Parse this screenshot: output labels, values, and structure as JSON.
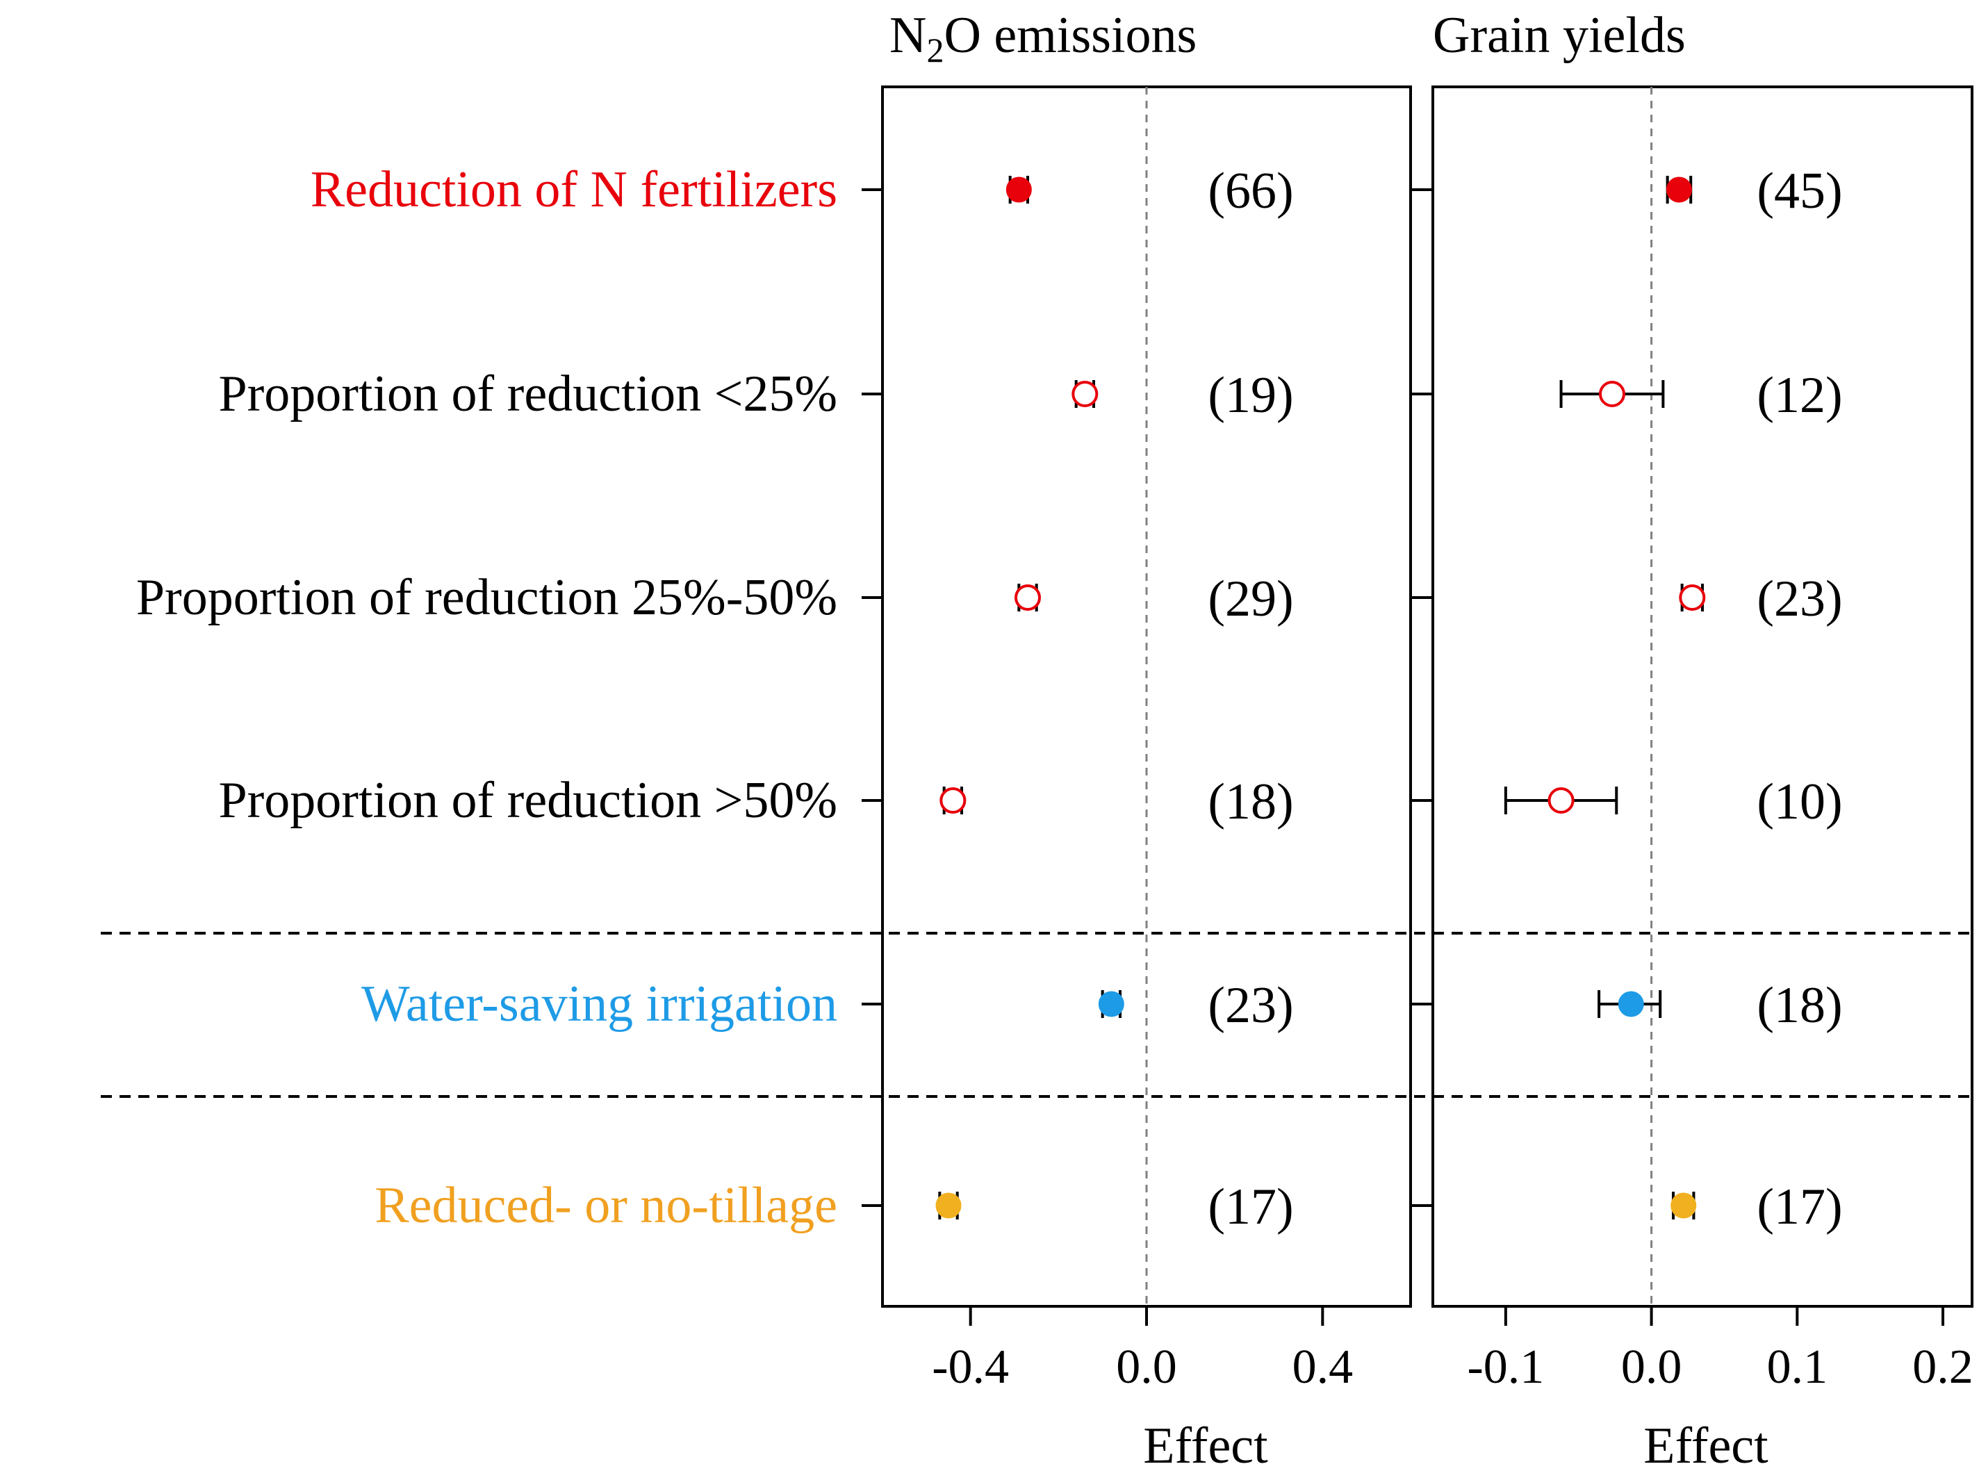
{
  "chart_data": [
    {
      "type": "forest",
      "panel": "left",
      "title_main": "N",
      "title_sub": "2",
      "title_rest": "O emissions",
      "xlabel": "Effect",
      "xlim": [
        -0.6,
        0.6
      ],
      "xticks": [
        "-0.4",
        "0.0",
        "0.4"
      ],
      "xtick_values": [
        -0.4,
        0.0,
        0.4
      ],
      "points": [
        {
          "category": "Reduction of N fertilizers",
          "value": -0.29,
          "ci": [
            -0.31,
            -0.27
          ],
          "n": "(66)",
          "style": "filled",
          "color": "#e8000b"
        },
        {
          "category": "Proportion of reduction <25%",
          "value": -0.14,
          "ci": [
            -0.16,
            -0.12
          ],
          "n": "(19)",
          "style": "open",
          "color": "#e8000b"
        },
        {
          "category": "Proportion of reduction 25%-50%",
          "value": -0.27,
          "ci": [
            -0.29,
            -0.25
          ],
          "n": "(29)",
          "style": "open",
          "color": "#e8000b"
        },
        {
          "category": "Proportion of reduction >50%",
          "value": -0.44,
          "ci": [
            -0.46,
            -0.42
          ],
          "n": "(18)",
          "style": "open",
          "color": "#e8000b"
        },
        {
          "category": "Water-saving irrigation",
          "value": -0.08,
          "ci": [
            -0.1,
            -0.06
          ],
          "n": "(23)",
          "style": "filled",
          "color": "#1e9be6"
        },
        {
          "category": "Reduced- or no-tillage",
          "value": -0.45,
          "ci": [
            -0.47,
            -0.43
          ],
          "n": "(17)",
          "style": "filled",
          "color": "#f0b020"
        }
      ]
    },
    {
      "type": "forest",
      "panel": "right",
      "title": "Grain yields",
      "xlabel": "Effect",
      "xlim": [
        -0.15,
        0.22
      ],
      "xticks": [
        "-0.1",
        "0.0",
        "0.1",
        "0.2"
      ],
      "xtick_values": [
        -0.1,
        0.0,
        0.1,
        0.2
      ],
      "points": [
        {
          "category": "Reduction of N fertilizers",
          "value": 0.019,
          "ci": [
            0.011,
            0.027
          ],
          "n": "(45)",
          "style": "filled",
          "color": "#e8000b"
        },
        {
          "category": "Proportion of reduction <25%",
          "value": -0.027,
          "ci": [
            -0.062,
            0.008
          ],
          "n": "(12)",
          "style": "open",
          "color": "#e8000b"
        },
        {
          "category": "Proportion of reduction 25%-50%",
          "value": 0.028,
          "ci": [
            0.021,
            0.035
          ],
          "n": "(23)",
          "style": "open",
          "color": "#e8000b"
        },
        {
          "category": "Proportion of reduction >50%",
          "value": -0.062,
          "ci": [
            -0.1,
            -0.024
          ],
          "n": "(10)",
          "style": "open",
          "color": "#e8000b"
        },
        {
          "category": "Water-saving irrigation",
          "value": -0.014,
          "ci": [
            -0.036,
            0.006
          ],
          "n": "(18)",
          "style": "filled",
          "color": "#1e9be6"
        },
        {
          "category": "Reduced- or no-tillage",
          "value": 0.022,
          "ci": [
            0.015,
            0.029
          ],
          "n": "(17)",
          "style": "filled",
          "color": "#f0b020"
        }
      ]
    }
  ],
  "rows": [
    {
      "label": "Reduction of N fertilizers",
      "color": "#e8000b"
    },
    {
      "label": "Proportion of reduction <25%",
      "color": "#000000"
    },
    {
      "label": "Proportion of reduction 25%-50%",
      "color": "#000000"
    },
    {
      "label": "Proportion of reduction >50%",
      "color": "#000000"
    },
    {
      "label": "Water-saving irrigation",
      "color": "#1e9be6"
    },
    {
      "label": "Reduced- or no-tillage",
      "color": "#f0a020"
    }
  ],
  "colors": {
    "axis": "#000000",
    "zero_line": "#808080",
    "separator": "#000000"
  }
}
